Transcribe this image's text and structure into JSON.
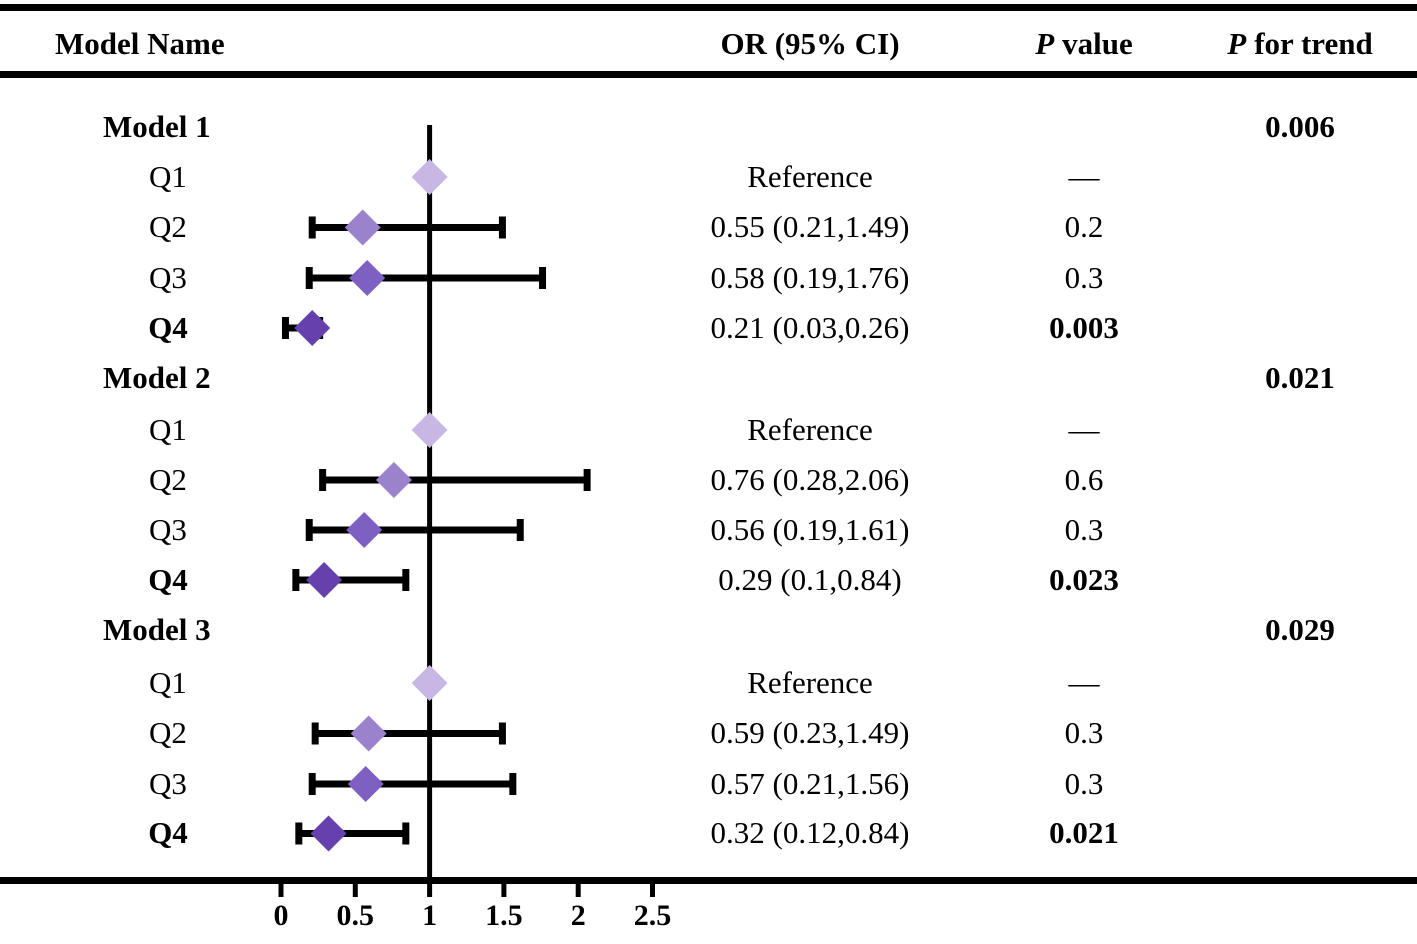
{
  "header": {
    "col_model": "Model Name",
    "col_or": "OR (95% CI)",
    "col_p_italic": "P",
    "col_p_rest": "value",
    "col_trend_italic": "P",
    "col_trend_rest": "for trend"
  },
  "chart_data": {
    "type": "forest",
    "title": "",
    "xlabel": "",
    "x_axis": {
      "ticks": [
        0,
        0.5,
        1,
        1.5,
        2,
        2.5
      ],
      "tick_labels": [
        "0",
        "0.5",
        "1",
        "1.5",
        "2",
        "2.5"
      ],
      "range": [
        0,
        2.5
      ]
    },
    "reference_line": 1,
    "colors": {
      "line": "#000000",
      "text": "#000000",
      "quartiles": [
        "#c8b7e4",
        "#9b82cd",
        "#7e60c3",
        "#6640ad"
      ]
    },
    "models": [
      {
        "name": "Model 1",
        "p_trend": "0.006",
        "rows": [
          {
            "label": "Q1",
            "or": 1,
            "ci": null,
            "or_text": "Reference",
            "p": "—",
            "reference": true
          },
          {
            "label": "Q2",
            "or": 0.55,
            "ci": [
              0.21,
              1.49
            ],
            "or_text": "0.55 (0.21,1.49)",
            "p": "0.2"
          },
          {
            "label": "Q3",
            "or": 0.58,
            "ci": [
              0.19,
              1.76
            ],
            "or_text": "0.58 (0.19,1.76)",
            "p": "0.3"
          },
          {
            "label": "Q4",
            "or": 0.21,
            "ci": [
              0.03,
              0.26
            ],
            "or_text": "0.21 (0.03,0.26)",
            "p": "0.003",
            "bold": true
          }
        ]
      },
      {
        "name": "Model 2",
        "p_trend": "0.021",
        "rows": [
          {
            "label": "Q1",
            "or": 1,
            "ci": null,
            "or_text": "Reference",
            "p": "—",
            "reference": true
          },
          {
            "label": "Q2",
            "or": 0.76,
            "ci": [
              0.28,
              2.06
            ],
            "or_text": "0.76 (0.28,2.06)",
            "p": "0.6"
          },
          {
            "label": "Q3",
            "or": 0.56,
            "ci": [
              0.19,
              1.61
            ],
            "or_text": "0.56 (0.19,1.61)",
            "p": "0.3"
          },
          {
            "label": "Q4",
            "or": 0.29,
            "ci": [
              0.1,
              0.84
            ],
            "or_text": "0.29 (0.1,0.84)",
            "p": "0.023",
            "bold": true
          }
        ]
      },
      {
        "name": "Model 3",
        "p_trend": "0.029",
        "rows": [
          {
            "label": "Q1",
            "or": 1,
            "ci": null,
            "or_text": "Reference",
            "p": "—",
            "reference": true
          },
          {
            "label": "Q2",
            "or": 0.59,
            "ci": [
              0.23,
              1.49
            ],
            "or_text": "0.59 (0.23,1.49)",
            "p": "0.3"
          },
          {
            "label": "Q3",
            "or": 0.57,
            "ci": [
              0.21,
              1.56
            ],
            "or_text": "0.57 (0.21,1.56)",
            "p": "0.3"
          },
          {
            "label": "Q4",
            "or": 0.32,
            "ci": [
              0.12,
              0.84
            ],
            "or_text": "0.32 (0.12,0.84)",
            "p": "0.021",
            "bold": true
          }
        ]
      }
    ]
  }
}
